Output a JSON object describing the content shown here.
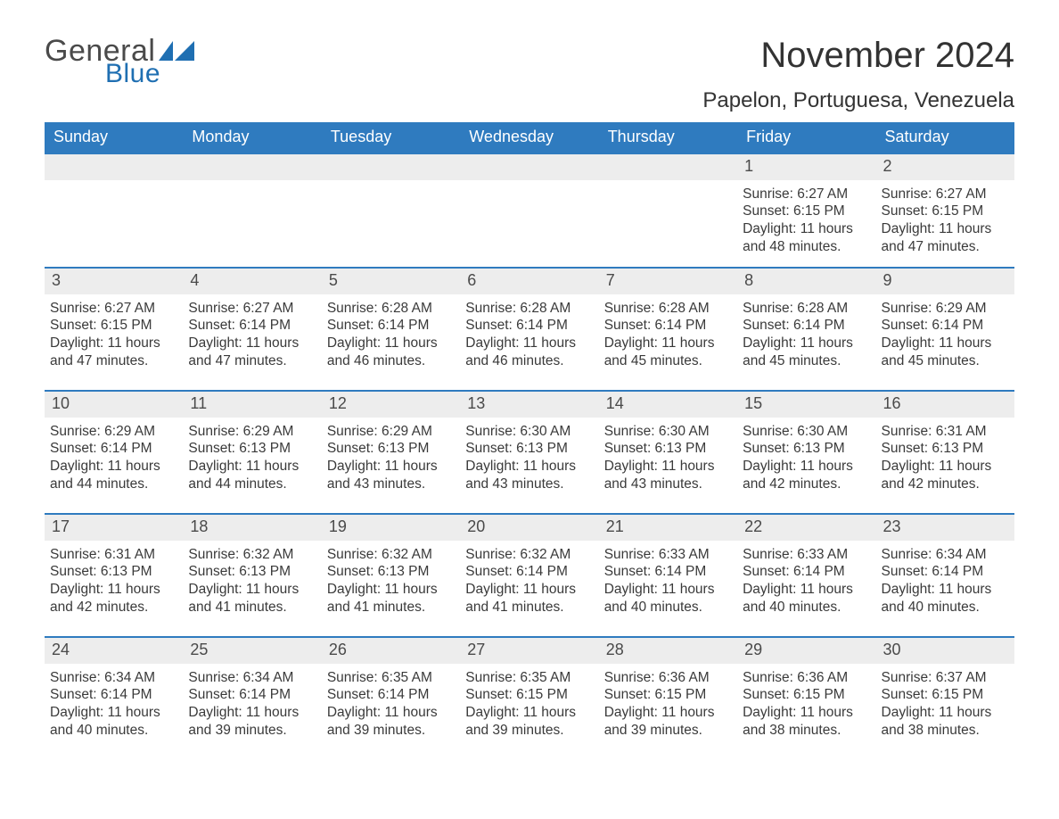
{
  "brand": {
    "name_part1": "General",
    "name_part2": "Blue",
    "color_text": "#4a4a4a",
    "color_blue": "#1f6fb2"
  },
  "header": {
    "month_title": "November 2024",
    "location": "Papelon, Portuguesa, Venezuela"
  },
  "style": {
    "header_bg": "#2f7bbf",
    "header_fg": "#ffffff",
    "daynum_bg": "#ededed",
    "daynum_border": "#2f7bbf",
    "body_fg": "#3a3a3a",
    "page_bg": "#ffffff",
    "title_fontsize": 40,
    "location_fontsize": 24,
    "dayhead_fontsize": 18,
    "daynum_fontsize": 18,
    "body_fontsize": 15.5
  },
  "day_labels": [
    "Sunday",
    "Monday",
    "Tuesday",
    "Wednesday",
    "Thursday",
    "Friday",
    "Saturday"
  ],
  "weeks": [
    [
      null,
      null,
      null,
      null,
      null,
      {
        "n": "1",
        "sunrise": "Sunrise: 6:27 AM",
        "sunset": "Sunset: 6:15 PM",
        "day1": "Daylight: 11 hours",
        "day2": "and 48 minutes."
      },
      {
        "n": "2",
        "sunrise": "Sunrise: 6:27 AM",
        "sunset": "Sunset: 6:15 PM",
        "day1": "Daylight: 11 hours",
        "day2": "and 47 minutes."
      }
    ],
    [
      {
        "n": "3",
        "sunrise": "Sunrise: 6:27 AM",
        "sunset": "Sunset: 6:15 PM",
        "day1": "Daylight: 11 hours",
        "day2": "and 47 minutes."
      },
      {
        "n": "4",
        "sunrise": "Sunrise: 6:27 AM",
        "sunset": "Sunset: 6:14 PM",
        "day1": "Daylight: 11 hours",
        "day2": "and 47 minutes."
      },
      {
        "n": "5",
        "sunrise": "Sunrise: 6:28 AM",
        "sunset": "Sunset: 6:14 PM",
        "day1": "Daylight: 11 hours",
        "day2": "and 46 minutes."
      },
      {
        "n": "6",
        "sunrise": "Sunrise: 6:28 AM",
        "sunset": "Sunset: 6:14 PM",
        "day1": "Daylight: 11 hours",
        "day2": "and 46 minutes."
      },
      {
        "n": "7",
        "sunrise": "Sunrise: 6:28 AM",
        "sunset": "Sunset: 6:14 PM",
        "day1": "Daylight: 11 hours",
        "day2": "and 45 minutes."
      },
      {
        "n": "8",
        "sunrise": "Sunrise: 6:28 AM",
        "sunset": "Sunset: 6:14 PM",
        "day1": "Daylight: 11 hours",
        "day2": "and 45 minutes."
      },
      {
        "n": "9",
        "sunrise": "Sunrise: 6:29 AM",
        "sunset": "Sunset: 6:14 PM",
        "day1": "Daylight: 11 hours",
        "day2": "and 45 minutes."
      }
    ],
    [
      {
        "n": "10",
        "sunrise": "Sunrise: 6:29 AM",
        "sunset": "Sunset: 6:14 PM",
        "day1": "Daylight: 11 hours",
        "day2": "and 44 minutes."
      },
      {
        "n": "11",
        "sunrise": "Sunrise: 6:29 AM",
        "sunset": "Sunset: 6:13 PM",
        "day1": "Daylight: 11 hours",
        "day2": "and 44 minutes."
      },
      {
        "n": "12",
        "sunrise": "Sunrise: 6:29 AM",
        "sunset": "Sunset: 6:13 PM",
        "day1": "Daylight: 11 hours",
        "day2": "and 43 minutes."
      },
      {
        "n": "13",
        "sunrise": "Sunrise: 6:30 AM",
        "sunset": "Sunset: 6:13 PM",
        "day1": "Daylight: 11 hours",
        "day2": "and 43 minutes."
      },
      {
        "n": "14",
        "sunrise": "Sunrise: 6:30 AM",
        "sunset": "Sunset: 6:13 PM",
        "day1": "Daylight: 11 hours",
        "day2": "and 43 minutes."
      },
      {
        "n": "15",
        "sunrise": "Sunrise: 6:30 AM",
        "sunset": "Sunset: 6:13 PM",
        "day1": "Daylight: 11 hours",
        "day2": "and 42 minutes."
      },
      {
        "n": "16",
        "sunrise": "Sunrise: 6:31 AM",
        "sunset": "Sunset: 6:13 PM",
        "day1": "Daylight: 11 hours",
        "day2": "and 42 minutes."
      }
    ],
    [
      {
        "n": "17",
        "sunrise": "Sunrise: 6:31 AM",
        "sunset": "Sunset: 6:13 PM",
        "day1": "Daylight: 11 hours",
        "day2": "and 42 minutes."
      },
      {
        "n": "18",
        "sunrise": "Sunrise: 6:32 AM",
        "sunset": "Sunset: 6:13 PM",
        "day1": "Daylight: 11 hours",
        "day2": "and 41 minutes."
      },
      {
        "n": "19",
        "sunrise": "Sunrise: 6:32 AM",
        "sunset": "Sunset: 6:13 PM",
        "day1": "Daylight: 11 hours",
        "day2": "and 41 minutes."
      },
      {
        "n": "20",
        "sunrise": "Sunrise: 6:32 AM",
        "sunset": "Sunset: 6:14 PM",
        "day1": "Daylight: 11 hours",
        "day2": "and 41 minutes."
      },
      {
        "n": "21",
        "sunrise": "Sunrise: 6:33 AM",
        "sunset": "Sunset: 6:14 PM",
        "day1": "Daylight: 11 hours",
        "day2": "and 40 minutes."
      },
      {
        "n": "22",
        "sunrise": "Sunrise: 6:33 AM",
        "sunset": "Sunset: 6:14 PM",
        "day1": "Daylight: 11 hours",
        "day2": "and 40 minutes."
      },
      {
        "n": "23",
        "sunrise": "Sunrise: 6:34 AM",
        "sunset": "Sunset: 6:14 PM",
        "day1": "Daylight: 11 hours",
        "day2": "and 40 minutes."
      }
    ],
    [
      {
        "n": "24",
        "sunrise": "Sunrise: 6:34 AM",
        "sunset": "Sunset: 6:14 PM",
        "day1": "Daylight: 11 hours",
        "day2": "and 40 minutes."
      },
      {
        "n": "25",
        "sunrise": "Sunrise: 6:34 AM",
        "sunset": "Sunset: 6:14 PM",
        "day1": "Daylight: 11 hours",
        "day2": "and 39 minutes."
      },
      {
        "n": "26",
        "sunrise": "Sunrise: 6:35 AM",
        "sunset": "Sunset: 6:14 PM",
        "day1": "Daylight: 11 hours",
        "day2": "and 39 minutes."
      },
      {
        "n": "27",
        "sunrise": "Sunrise: 6:35 AM",
        "sunset": "Sunset: 6:15 PM",
        "day1": "Daylight: 11 hours",
        "day2": "and 39 minutes."
      },
      {
        "n": "28",
        "sunrise": "Sunrise: 6:36 AM",
        "sunset": "Sunset: 6:15 PM",
        "day1": "Daylight: 11 hours",
        "day2": "and 39 minutes."
      },
      {
        "n": "29",
        "sunrise": "Sunrise: 6:36 AM",
        "sunset": "Sunset: 6:15 PM",
        "day1": "Daylight: 11 hours",
        "day2": "and 38 minutes."
      },
      {
        "n": "30",
        "sunrise": "Sunrise: 6:37 AM",
        "sunset": "Sunset: 6:15 PM",
        "day1": "Daylight: 11 hours",
        "day2": "and 38 minutes."
      }
    ]
  ]
}
